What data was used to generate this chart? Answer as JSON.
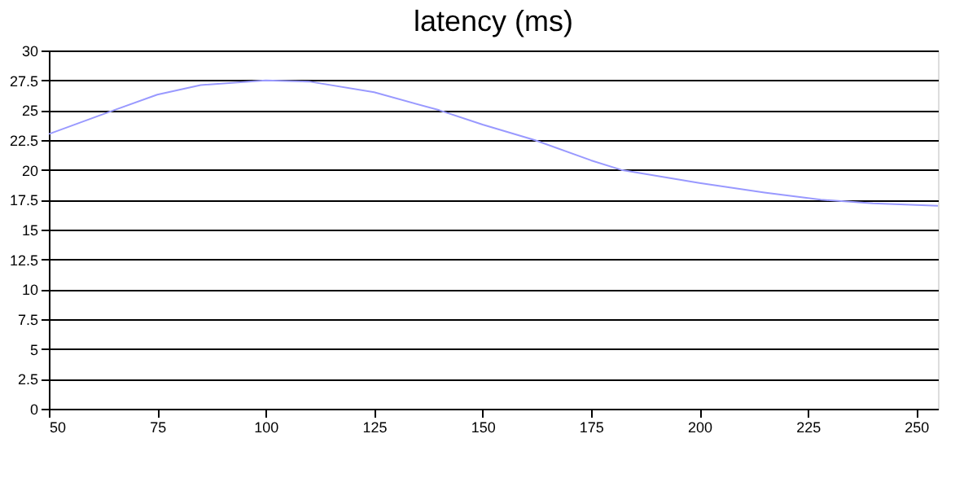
{
  "chart_data": {
    "type": "line",
    "title": "latency (ms)",
    "x": [
      50,
      65,
      75,
      85,
      100,
      110,
      125,
      140,
      150,
      162,
      175,
      182,
      200,
      215,
      228,
      240,
      255
    ],
    "series": [
      {
        "color": "#9999ff",
        "values": [
          23,
          25,
          26.3,
          27.1,
          27.5,
          27.4,
          26.5,
          25,
          23.8,
          22.5,
          20.8,
          20,
          18.9,
          18.1,
          17.5,
          17.2,
          17
        ]
      }
    ],
    "xlim": [
      50,
      255
    ],
    "xticks": [
      50,
      75,
      100,
      125,
      150,
      175,
      200,
      225,
      250
    ],
    "ylim": [
      0,
      30
    ],
    "yticks": [
      0,
      2.5,
      5,
      7.5,
      10,
      12.5,
      15,
      17.5,
      20,
      22.5,
      25,
      27.5,
      30
    ],
    "grid": "y",
    "marker": "none",
    "line_style": "solid"
  }
}
